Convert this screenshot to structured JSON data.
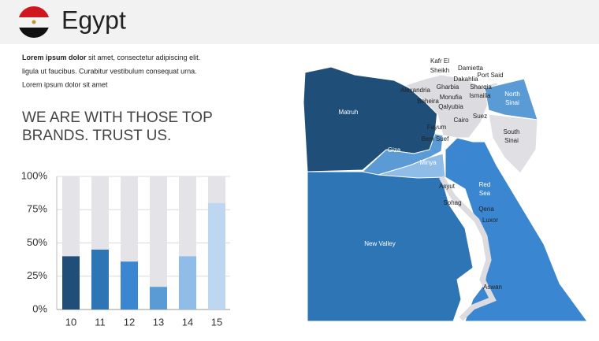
{
  "header": {
    "title": "Egypt"
  },
  "intro": {
    "bold": "Lorem ipsum dolor",
    "lines": [
      "sit amet, consectetur adipiscing elit.",
      "ligula ut faucibus.  Curabitur vestibulum consequat urna.",
      "Lorem ipsum dolor sit amet"
    ]
  },
  "headline": [
    "WE ARE WITH THOSE TOP",
    "BRANDS. TRUST US."
  ],
  "chart_data": {
    "type": "bar",
    "categories": [
      "10",
      "11",
      "12",
      "13",
      "14",
      "15"
    ],
    "values": [
      40,
      45,
      36,
      17,
      40,
      80
    ],
    "colors": [
      "#1f4e79",
      "#2e75b6",
      "#3a86d1",
      "#5b9bd5",
      "#8fbde8",
      "#bdd7f0"
    ],
    "background_color": "#e4e4e8",
    "ylim": [
      0,
      100
    ],
    "yticks": [
      {
        "value": 0,
        "label": "0%"
      },
      {
        "value": 25,
        "label": "25%"
      },
      {
        "value": 50,
        "label": "50%"
      },
      {
        "value": 75,
        "label": "75%"
      },
      {
        "value": 100,
        "label": "100%"
      }
    ],
    "grid": true
  },
  "map": {
    "labels": [
      "Kafr El",
      "Sheikh",
      "Damietta",
      "Port Said",
      "Dakahlia",
      "Alexandria",
      "Gharbia",
      "Sharqia",
      "Beheira",
      "Monufia",
      "Ismailia",
      "North",
      "Sinai",
      "Matruh",
      "Qalyubia",
      "Cairo",
      "Suez",
      "Fayum",
      "South",
      "Sinai",
      "Beni Suef",
      "Giza",
      "Minya",
      "Asyut",
      "Red",
      "Sea",
      "Sohag",
      "Qena",
      "Luxor",
      "New Valley",
      "Aswan"
    ]
  }
}
